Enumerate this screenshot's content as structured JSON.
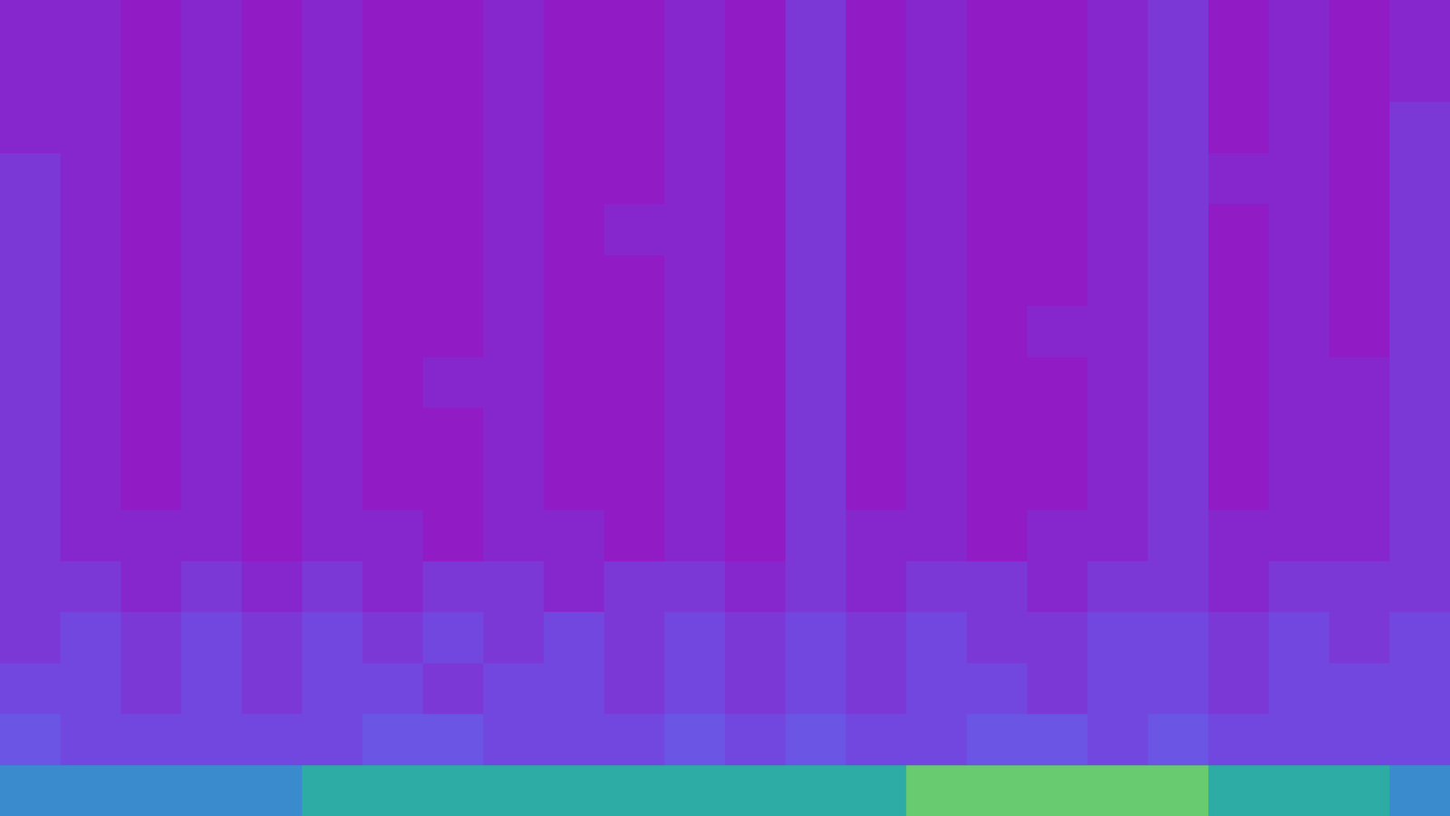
{
  "chart_data": {
    "type": "heatmap",
    "z": [
      [
        7,
        7,
        7,
        7,
        7,
        8,
        8,
        8,
        8,
        8,
        8,
        8,
        8,
        8,
        8,
        9,
        9,
        9,
        9,
        9,
        8,
        8,
        8,
        7
      ],
      [
        5,
        4,
        4,
        4,
        4,
        4,
        5,
        5,
        4,
        4,
        4,
        5,
        4,
        5,
        4,
        4,
        5,
        5,
        4,
        5,
        4,
        4,
        4,
        4
      ],
      [
        4,
        4,
        3,
        4,
        3,
        4,
        4,
        3,
        4,
        4,
        3,
        4,
        3,
        4,
        3,
        4,
        4,
        3,
        4,
        4,
        3,
        4,
        4,
        4
      ],
      [
        3,
        4,
        3,
        4,
        3,
        4,
        3,
        4,
        3,
        4,
        3,
        4,
        3,
        4,
        3,
        4,
        3,
        3,
        4,
        4,
        3,
        4,
        3,
        4
      ],
      [
        3,
        3,
        2,
        3,
        2,
        3,
        2,
        3,
        3,
        2,
        3,
        3,
        2,
        3,
        2,
        3,
        3,
        2,
        3,
        3,
        2,
        3,
        3,
        3
      ],
      [
        3,
        2,
        2,
        2,
        1,
        2,
        2,
        1,
        2,
        2,
        1,
        2,
        1,
        3,
        2,
        2,
        1,
        2,
        2,
        3,
        2,
        2,
        2,
        3
      ],
      [
        3,
        2,
        1,
        2,
        1,
        2,
        1,
        1,
        2,
        1,
        1,
        2,
        1,
        3,
        1,
        2,
        1,
        1,
        2,
        3,
        1,
        2,
        2,
        3
      ],
      [
        3,
        2,
        1,
        2,
        1,
        2,
        1,
        1,
        2,
        1,
        1,
        2,
        1,
        3,
        1,
        2,
        1,
        1,
        2,
        3,
        1,
        2,
        2,
        3
      ],
      [
        3,
        2,
        1,
        2,
        1,
        2,
        1,
        2,
        2,
        1,
        1,
        2,
        1,
        3,
        1,
        2,
        1,
        1,
        2,
        3,
        1,
        2,
        2,
        3
      ],
      [
        3,
        2,
        1,
        2,
        1,
        2,
        1,
        1,
        2,
        1,
        1,
        2,
        1,
        3,
        1,
        2,
        1,
        2,
        2,
        3,
        1,
        2,
        1,
        3
      ],
      [
        3,
        2,
        1,
        2,
        1,
        2,
        1,
        1,
        2,
        1,
        1,
        2,
        1,
        3,
        1,
        2,
        1,
        1,
        2,
        3,
        1,
        2,
        1,
        3
      ],
      [
        3,
        2,
        1,
        2,
        1,
        2,
        1,
        1,
        2,
        1,
        2,
        2,
        1,
        3,
        1,
        2,
        1,
        1,
        2,
        3,
        1,
        2,
        1,
        3
      ],
      [
        3,
        2,
        1,
        2,
        1,
        2,
        1,
        1,
        2,
        1,
        1,
        2,
        1,
        3,
        1,
        2,
        1,
        1,
        2,
        3,
        2,
        2,
        1,
        3
      ],
      [
        2,
        2,
        1,
        2,
        1,
        2,
        1,
        1,
        2,
        1,
        1,
        2,
        1,
        3,
        1,
        2,
        1,
        1,
        2,
        3,
        1,
        2,
        1,
        3
      ],
      [
        2,
        2,
        1,
        2,
        1,
        2,
        1,
        1,
        2,
        1,
        1,
        2,
        1,
        3,
        1,
        2,
        1,
        1,
        2,
        3,
        1,
        2,
        1,
        2
      ],
      [
        2,
        2,
        1,
        2,
        1,
        2,
        1,
        1,
        2,
        1,
        1,
        2,
        1,
        3,
        1,
        2,
        1,
        1,
        2,
        3,
        1,
        2,
        1,
        2
      ]
    ],
    "zlim": [
      0,
      10
    ],
    "tick_labels": false,
    "grid": false
  }
}
